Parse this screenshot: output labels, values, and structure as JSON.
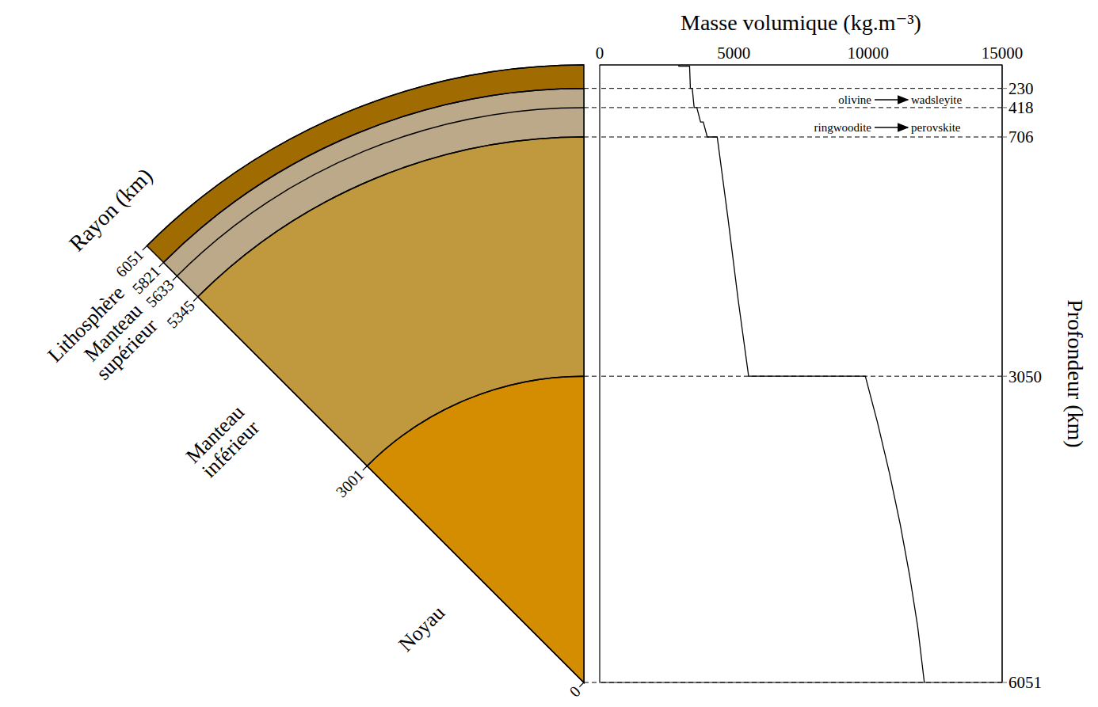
{
  "diagram": {
    "radius_label": "Rayon (km)",
    "radii": [
      6051,
      5821,
      5633,
      5345,
      3001,
      0
    ],
    "layers": [
      {
        "name": "Lithosphère",
        "radii": [
          6051,
          5821
        ],
        "color": "#a06b00"
      },
      {
        "name": "Manteau supérieur",
        "radii": [
          5821,
          5345
        ],
        "color": "#bca98a"
      },
      {
        "name": "Manteau inférieur",
        "radii": [
          5345,
          3001
        ],
        "color": "#c0983e"
      },
      {
        "name": "Noyau",
        "radii": [
          3001,
          0
        ],
        "color": "#d48c00"
      }
    ]
  },
  "chart_data": {
    "type": "line",
    "xlabel": "Masse volumique (kg.m⁻³)",
    "ylabel": "Profondeur (km)",
    "x": [
      2950,
      2950,
      3350,
      3380,
      3450,
      3520,
      3620,
      3760,
      3860,
      4010,
      4380,
      4780,
      5160,
      5550,
      9900,
      10350,
      10800,
      11200,
      11550,
      11850,
      12100
    ],
    "y": [
      0,
      12,
      12,
      230,
      230,
      418,
      418,
      560,
      560,
      706,
      706,
      1500,
      2300,
      3050,
      3050,
      3500,
      4000,
      4500,
      5000,
      5500,
      6051
    ],
    "xlim": [
      0,
      15000
    ],
    "xticks": [
      0,
      5000,
      10000,
      15000
    ],
    "ylim": [
      0,
      6051
    ],
    "yticks": [
      230,
      418,
      706,
      3050,
      6051
    ],
    "grid": true,
    "color": "#000000",
    "line_style": "solid",
    "annotations": [
      {
        "from": "olivine",
        "to": "wadsleyite"
      },
      {
        "from": "ringwoodite",
        "to": "perovskite"
      }
    ]
  }
}
